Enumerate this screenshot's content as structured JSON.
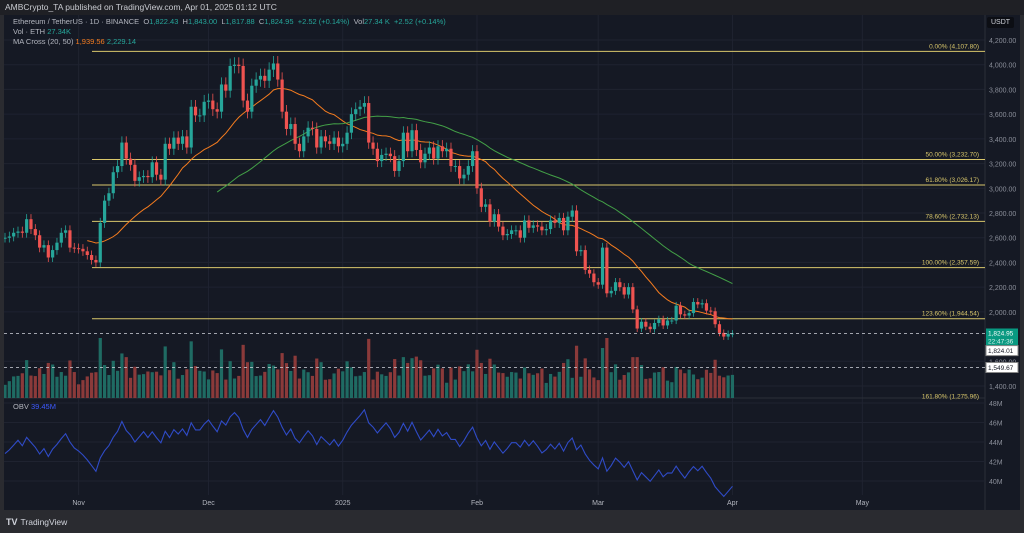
{
  "header": {
    "published": "AMBCrypto_TA published on TradingView.com, Apr 01, 2025 01:12 UTC"
  },
  "legend": {
    "symbol": "Ethereum / TetherUS · 1D · BINANCE",
    "o_label": "O",
    "o": "1,822.43",
    "h_label": "H",
    "h": "1,843.00",
    "l_label": "L",
    "l": "1,817.88",
    "c_label": "C",
    "c": "1,824.95",
    "change": "+2.52 (+0.14%)",
    "vol_label": "Vol",
    "vol": "27.34 K",
    "vol_change": "+2.52 (+0.14%)",
    "vol_eth_label": "Vol · ETH",
    "vol_eth": "27.34K",
    "ma_label": "MA Cross (20, 50)",
    "ma20": "1,939.56",
    "ma50": "2,229.14",
    "obv_label": "OBV",
    "obv": "39.45M"
  },
  "currency": "USDT",
  "footer": {
    "brand": "TradingView"
  },
  "colors": {
    "up": "#26a69a",
    "down": "#ef5350",
    "fib": "#d9c76b",
    "ma20": "#f57c1f",
    "ma50": "#43a047",
    "obv": "#2f4bc7",
    "bg": "#151924"
  },
  "chart_data": {
    "type": "candlestick",
    "start_date": "2024-10-15",
    "interval": "1D",
    "closes": [
      2600,
      2610,
      2640,
      2650,
      2640,
      2750,
      2670,
      2620,
      2520,
      2540,
      2440,
      2500,
      2560,
      2640,
      2660,
      2520,
      2515,
      2510,
      2490,
      2460,
      2420,
      2400,
      2720,
      2900,
      2960,
      3130,
      3180,
      3370,
      3240,
      3190,
      3060,
      3090,
      3100,
      3090,
      3210,
      3110,
      3070,
      3360,
      3320,
      3410,
      3360,
      3420,
      3330,
      3660,
      3590,
      3590,
      3700,
      3710,
      3640,
      3620,
      3840,
      3790,
      3990,
      4000,
      3990,
      3710,
      3620,
      3830,
      3880,
      3910,
      3870,
      3960,
      4010,
      3880,
      3620,
      3480,
      3520,
      3360,
      3300,
      3420,
      3490,
      3480,
      3330,
      3420,
      3380,
      3360,
      3410,
      3340,
      3360,
      3450,
      3600,
      3640,
      3660,
      3690,
      3370,
      3320,
      3220,
      3270,
      3280,
      3260,
      3140,
      3220,
      3450,
      3300,
      3470,
      3310,
      3210,
      3280,
      3330,
      3240,
      3340,
      3300,
      3320,
      3180,
      3180,
      3080,
      3110,
      3180,
      3300,
      3000,
      2850,
      2870,
      2730,
      2790,
      2690,
      2620,
      2630,
      2660,
      2660,
      2600,
      2740,
      2680,
      2700,
      2690,
      2660,
      2670,
      2740,
      2720,
      2760,
      2660,
      2770,
      2820,
      2490,
      2500,
      2340,
      2310,
      2240,
      2220,
      2520,
      2150,
      2170,
      2240,
      2200,
      2140,
      2200,
      2020,
      1865,
      1920,
      1880,
      1860,
      1910,
      1940,
      1890,
      1930,
      1930,
      2050,
      1980,
      1970,
      1990,
      2080,
      2060,
      2070,
      2010,
      2005,
      1900,
      1830,
      1800,
      1822,
      1825
    ],
    "price_axis": {
      "ticks": [
        "4,200.00",
        "4,000.00",
        "3,800.00",
        "3,600.00",
        "3,400.00",
        "3,200.00",
        "3,000.00",
        "2,800.00",
        "2,600.00",
        "2,400.00",
        "2,200.00",
        "2,000.00",
        "1,600.00",
        "1,400.00"
      ],
      "values": [
        4200,
        4000,
        3800,
        3600,
        3400,
        3200,
        3000,
        2800,
        2600,
        2400,
        2200,
        2000,
        1600,
        1400
      ],
      "range": [
        1400,
        4200
      ]
    },
    "time_axis": [
      {
        "label": "Nov",
        "day": 17
      },
      {
        "label": "Dec",
        "day": 47
      },
      {
        "label": "2025",
        "day": 78
      },
      {
        "label": "Feb",
        "day": 109
      },
      {
        "label": "Mar",
        "day": 137
      },
      {
        "label": "Apr",
        "day": 168
      },
      {
        "label": "May",
        "day": 198
      }
    ],
    "fib_levels": [
      {
        "label": "0.00% (4,107.80)",
        "price": 4107.8
      },
      {
        "label": "50.00% (3,232.70)",
        "price": 3232.7
      },
      {
        "label": "61.80% (3,026.17)",
        "price": 3026.17
      },
      {
        "label": "78.60% (2,732.13)",
        "price": 2732.13
      },
      {
        "label": "100.00% (2,357.59)",
        "price": 2357.59
      },
      {
        "label": "123.60% (1,944.54)",
        "price": 1944.54
      },
      {
        "label": "161.80% (1,275.96)",
        "price": 1275.96
      }
    ],
    "price_markers": [
      {
        "label": "1,824.95",
        "sub": "22:47:36",
        "price": 1824.95,
        "style": "last"
      },
      {
        "label": "1,824.01",
        "price": 1824.01,
        "style": "plain"
      },
      {
        "label": "1,549.67",
        "price": 1549.67,
        "style": "dashed"
      }
    ],
    "obv_axis": {
      "ticks": [
        "48M",
        "46M",
        "44M",
        "42M",
        "40M"
      ],
      "values": [
        48,
        46,
        44,
        42,
        40
      ],
      "last": 39.45
    }
  }
}
